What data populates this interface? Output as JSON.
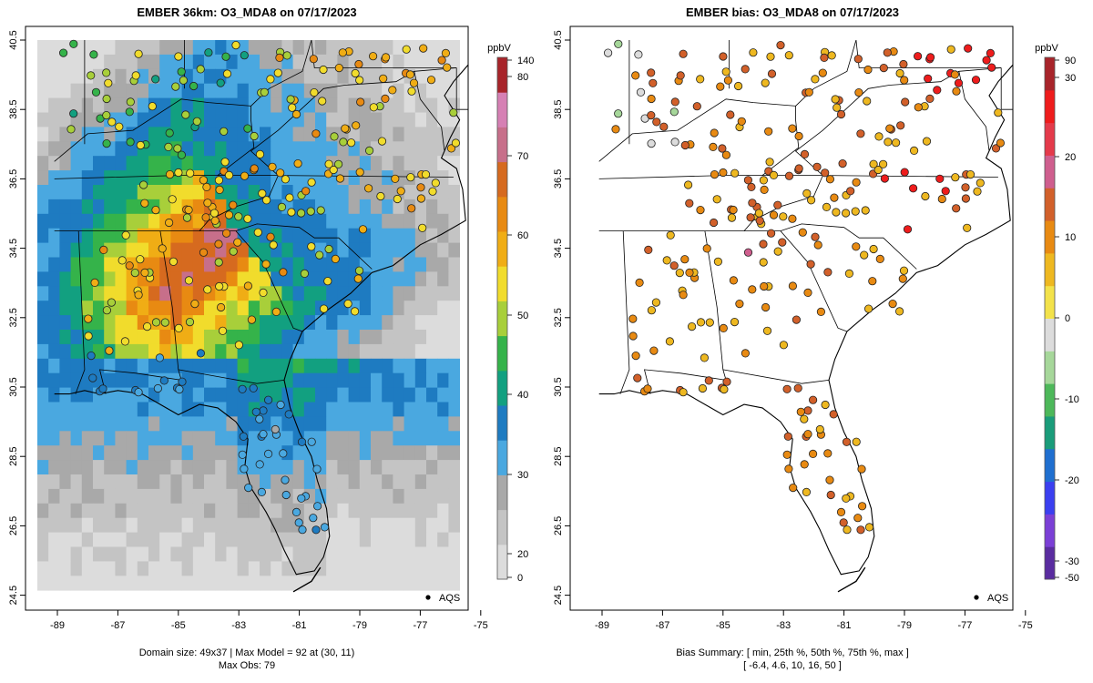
{
  "left_panel": {
    "title": "EMBER 36km: O3_MDA8 on 07/17/2023",
    "legend_unit": "ppbV",
    "legend_ticks": [
      "140",
      "80",
      "70",
      "60",
      "50",
      "40",
      "30",
      "20",
      "0"
    ],
    "aqs_label": "AQS",
    "caption_line1": "Domain size: 49x37 | Max Model = 92 at (30, 11)",
    "caption_line2": "Max Obs: 79"
  },
  "right_panel": {
    "title": "EMBER bias: O3_MDA8 on 07/17/2023",
    "legend_unit": "ppbV",
    "legend_ticks": [
      "90",
      "30",
      "20",
      "10",
      "0",
      "-10",
      "-20",
      "-30",
      "-50"
    ],
    "aqs_label": "AQS",
    "caption_line1": "Bias Summary: [ min, 25th %, 50th %, 75th %, max ]",
    "caption_line2": "[ -6.4,   4.6,   10,   16,   50 ]"
  },
  "axes": {
    "x_ticks": [
      "-89",
      "-87",
      "-85",
      "-83",
      "-81",
      "-79",
      "-77",
      "-75"
    ],
    "y_ticks": [
      "40.5",
      "38.5",
      "36.5",
      "34.5",
      "32.5",
      "30.5",
      "28.5",
      "26.5",
      "24.5"
    ]
  },
  "colors": {
    "model_scale": [
      "#dcdcdc",
      "#c4c4c4",
      "#a9a9a9",
      "#4aa8e0",
      "#1e7bc1",
      "#12a080",
      "#35b34a",
      "#a8cf3a",
      "#f1dc2c",
      "#f0ad15",
      "#e88a12",
      "#d66a1f",
      "#c76f8a",
      "#d680b4",
      "#a8242a"
    ],
    "bias_scale": [
      "#5a2ca0",
      "#7b3fd6",
      "#3b3ff0",
      "#1f6fd0",
      "#1a9c7a",
      "#4db85a",
      "#a6d79a",
      "#dcdcdc",
      "#f3e24a",
      "#eeb820",
      "#e88a12",
      "#d2602a",
      "#cf5e8e",
      "#e43a4a",
      "#ee1c1c",
      "#a8242a"
    ]
  }
}
